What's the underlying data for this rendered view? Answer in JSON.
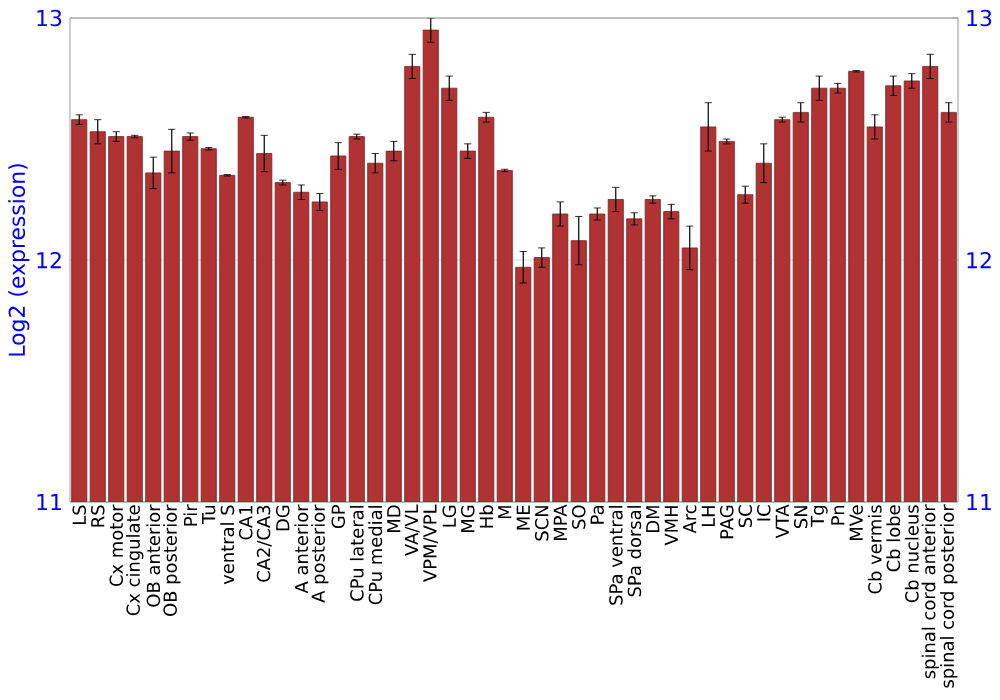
{
  "chart_data": {
    "type": "bar",
    "ylabel": "Log2 (expression)",
    "categories": [
      "LS",
      "RS",
      "Cx motor",
      "Cx cingulate",
      "OB anterior",
      "OB posterior",
      "Pir",
      "Tu",
      "ventral S",
      "CA1",
      "CA2/CA3",
      "DG",
      "A anterior",
      "A posterior",
      "GP",
      "CPu lateral",
      "CPu medial",
      "MD",
      "VA/VL",
      "VPM/VPL",
      "LG",
      "MG",
      "Hb",
      "M",
      "ME",
      "SCN",
      "MPA",
      "SO",
      "Pa",
      "SPa ventral",
      "SPa dorsal",
      "DM",
      "VMH",
      "Arc",
      "LH",
      "PAG",
      "SC",
      "IC",
      "VTA",
      "SN",
      "Tg",
      "Pn",
      "MVe",
      "Cb vermis",
      "Cb lobe",
      "Cb nucleus",
      "spinal cord anterior",
      "spinal cord posterior"
    ],
    "values": [
      12.58,
      12.53,
      12.51,
      12.51,
      12.36,
      12.45,
      12.51,
      12.46,
      12.35,
      12.59,
      12.44,
      12.32,
      12.28,
      12.24,
      12.43,
      12.51,
      12.4,
      12.45,
      12.8,
      12.95,
      12.71,
      12.45,
      12.59,
      12.37,
      11.97,
      12.01,
      12.19,
      12.08,
      12.19,
      12.25,
      12.17,
      12.25,
      12.2,
      12.05,
      12.55,
      12.49,
      12.27,
      12.4,
      12.58,
      12.61,
      12.71,
      12.71,
      12.78,
      12.55,
      12.72,
      12.74,
      12.8,
      12.61
    ],
    "errors": [
      0.02,
      0.05,
      0.02,
      0.005,
      0.065,
      0.09,
      0.015,
      0.005,
      0.003,
      0.003,
      0.075,
      0.01,
      0.03,
      0.035,
      0.055,
      0.01,
      0.04,
      0.04,
      0.05,
      0.05,
      0.05,
      0.03,
      0.02,
      0.005,
      0.065,
      0.04,
      0.05,
      0.1,
      0.025,
      0.05,
      0.025,
      0.015,
      0.03,
      0.09,
      0.1,
      0.01,
      0.035,
      0.08,
      0.01,
      0.04,
      0.05,
      0.02,
      0.003,
      0.05,
      0.04,
      0.03,
      0.05,
      0.04
    ],
    "color": "#b03232",
    "ylim": [
      11,
      13
    ],
    "yticks": [
      11,
      12,
      13
    ],
    "y2lim": [
      11,
      13
    ],
    "y2ticks": [
      11,
      12,
      13
    ],
    "grid": "y"
  }
}
